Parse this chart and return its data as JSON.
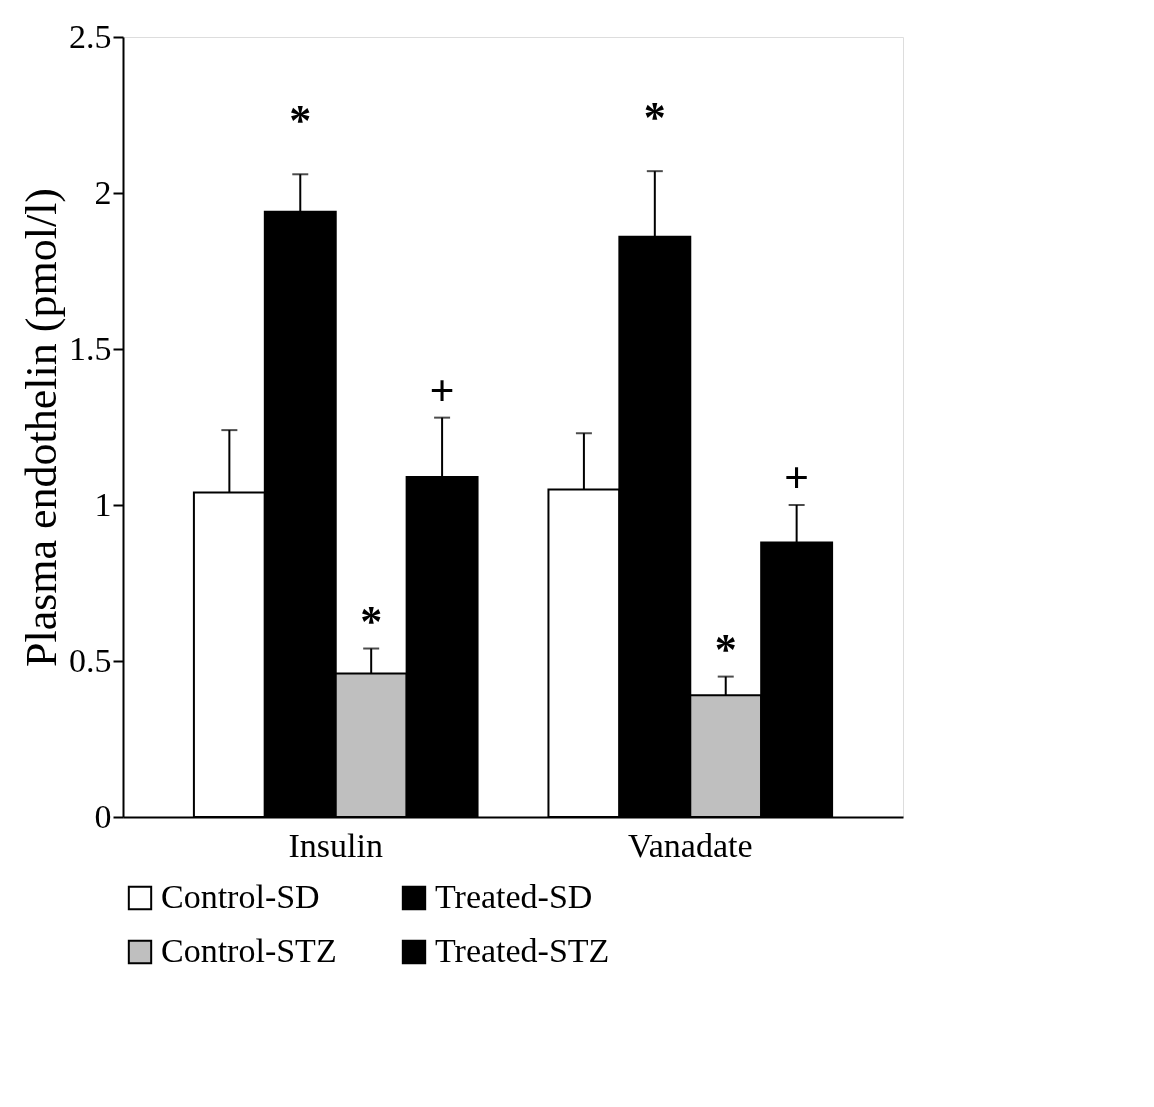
{
  "chart_data": {
    "type": "bar",
    "ylabel": "Plasma endothelin (pmol/l)",
    "categories": [
      "Insulin",
      "Vanadate"
    ],
    "series": [
      {
        "name": "Control-SD",
        "color": "#ffffff",
        "values": [
          1.04,
          1.05
        ],
        "errors": [
          [
            1.04,
            1.24
          ],
          [
            1.05,
            1.23
          ]
        ]
      },
      {
        "name": "Treated-SD",
        "color": "#000000",
        "values": [
          1.94,
          1.86
        ],
        "errors": [
          [
            1.94,
            2.06
          ],
          [
            1.86,
            2.07
          ]
        ]
      },
      {
        "name": "Control-STZ",
        "color": "#bfbfbf",
        "values": [
          0.46,
          0.39
        ],
        "errors": [
          [
            0.46,
            0.54
          ],
          [
            0.39,
            0.45
          ]
        ]
      },
      {
        "name": "Treated-STZ",
        "color": "#000000",
        "values": [
          1.09,
          0.88
        ],
        "errors": [
          [
            1.09,
            1.28
          ],
          [
            0.88,
            1.0
          ]
        ]
      }
    ],
    "ylim": [
      0,
      2.5
    ],
    "yticks": [
      0,
      0.5,
      1,
      1.5,
      2,
      2.5
    ],
    "grid": false,
    "legend": "bottom",
    "annotations": [
      "*",
      {
        "text": "*",
        "x": "Insulin",
        "y": 0.54
      },
      {
        "text": "+",
        "x": "Insulin",
        "y": 1.28
      },
      "*",
      {
        "text": "*",
        "x": "Vanadate",
        "y": 0.45
      },
      {
        "text": "+",
        "x": "Vanadate",
        "y": 1.0
      }
    ]
  }
}
